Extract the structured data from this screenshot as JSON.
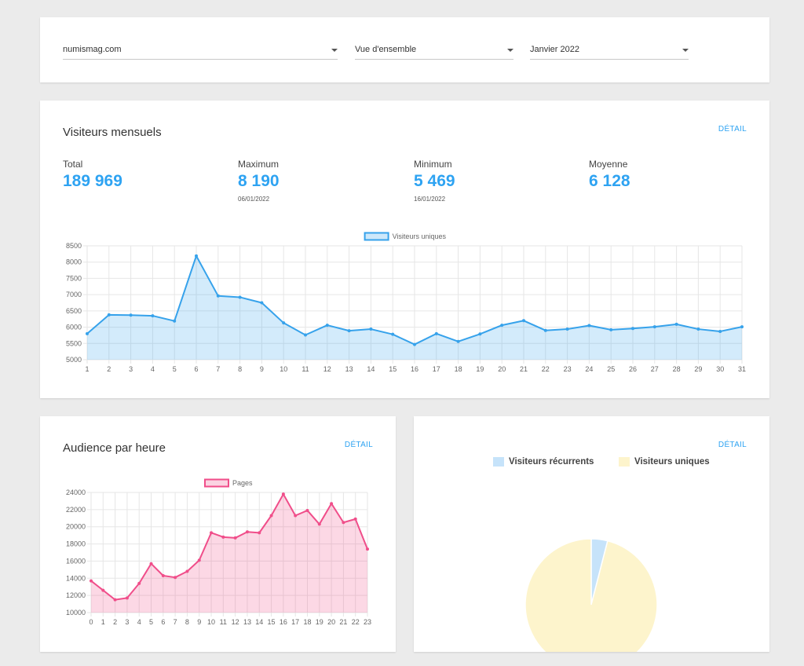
{
  "filters": {
    "site": "numismag.com",
    "view": "Vue d'ensemble",
    "period": "Janvier 2022"
  },
  "visitors": {
    "title": "Visiteurs mensuels",
    "detail_label": "DÉTAIL",
    "stats": [
      {
        "label": "Total",
        "value": "189 969",
        "date": ""
      },
      {
        "label": "Maximum",
        "value": "8 190",
        "date": "06/01/2022"
      },
      {
        "label": "Minimum",
        "value": "5 469",
        "date": "16/01/2022"
      },
      {
        "label": "Moyenne",
        "value": "6 128",
        "date": ""
      }
    ]
  },
  "audience": {
    "title": "Audience par heure",
    "detail_label": "DÉTAIL"
  },
  "pie_card": {
    "detail_label": "DÉTAIL"
  },
  "chart_data": [
    {
      "type": "area",
      "title": "",
      "series": [
        {
          "name": "Visiteurs uniques",
          "color": "#36a2eb",
          "values": [
            5800,
            6380,
            6370,
            6350,
            6190,
            8190,
            6960,
            6920,
            6750,
            6130,
            5760,
            6060,
            5890,
            5940,
            5780,
            5469,
            5800,
            5560,
            5790,
            6060,
            6200,
            5900,
            5940,
            6050,
            5920,
            5960,
            6010,
            6090,
            5940,
            5870,
            6010
          ]
        }
      ],
      "x": [
        "1",
        "2",
        "3",
        "4",
        "5",
        "6",
        "7",
        "8",
        "9",
        "10",
        "11",
        "12",
        "13",
        "14",
        "15",
        "16",
        "17",
        "18",
        "19",
        "20",
        "21",
        "22",
        "23",
        "24",
        "25",
        "26",
        "27",
        "28",
        "29",
        "30",
        "31"
      ],
      "ylim": [
        5000,
        8500
      ],
      "yticks": [
        5000,
        5500,
        6000,
        6500,
        7000,
        7500,
        8000,
        8500
      ],
      "legend": "top",
      "grid": true
    },
    {
      "type": "area",
      "title": "",
      "series": [
        {
          "name": "Pages",
          "color": "#f04e8a",
          "values": [
            13700,
            12600,
            11500,
            11700,
            13400,
            15700,
            14300,
            14100,
            14800,
            16100,
            19300,
            18800,
            18700,
            19400,
            19300,
            21300,
            23800,
            21300,
            21900,
            20300,
            22700,
            20500,
            20900,
            17400
          ]
        }
      ],
      "x": [
        "0",
        "1",
        "2",
        "3",
        "4",
        "5",
        "6",
        "7",
        "8",
        "9",
        "10",
        "11",
        "12",
        "13",
        "14",
        "15",
        "16",
        "17",
        "18",
        "19",
        "20",
        "21",
        "22",
        "23"
      ],
      "ylim": [
        10000,
        24000
      ],
      "yticks": [
        10000,
        12000,
        14000,
        16000,
        18000,
        20000,
        22000,
        24000
      ],
      "legend": "top",
      "grid": true
    },
    {
      "type": "pie",
      "title": "",
      "categories": [
        "Visiteurs récurrents",
        "Visiteurs uniques"
      ],
      "values": [
        4,
        96
      ],
      "colors": [
        "#c6e3fa",
        "#fdf4cc"
      ],
      "legend": "top"
    }
  ]
}
